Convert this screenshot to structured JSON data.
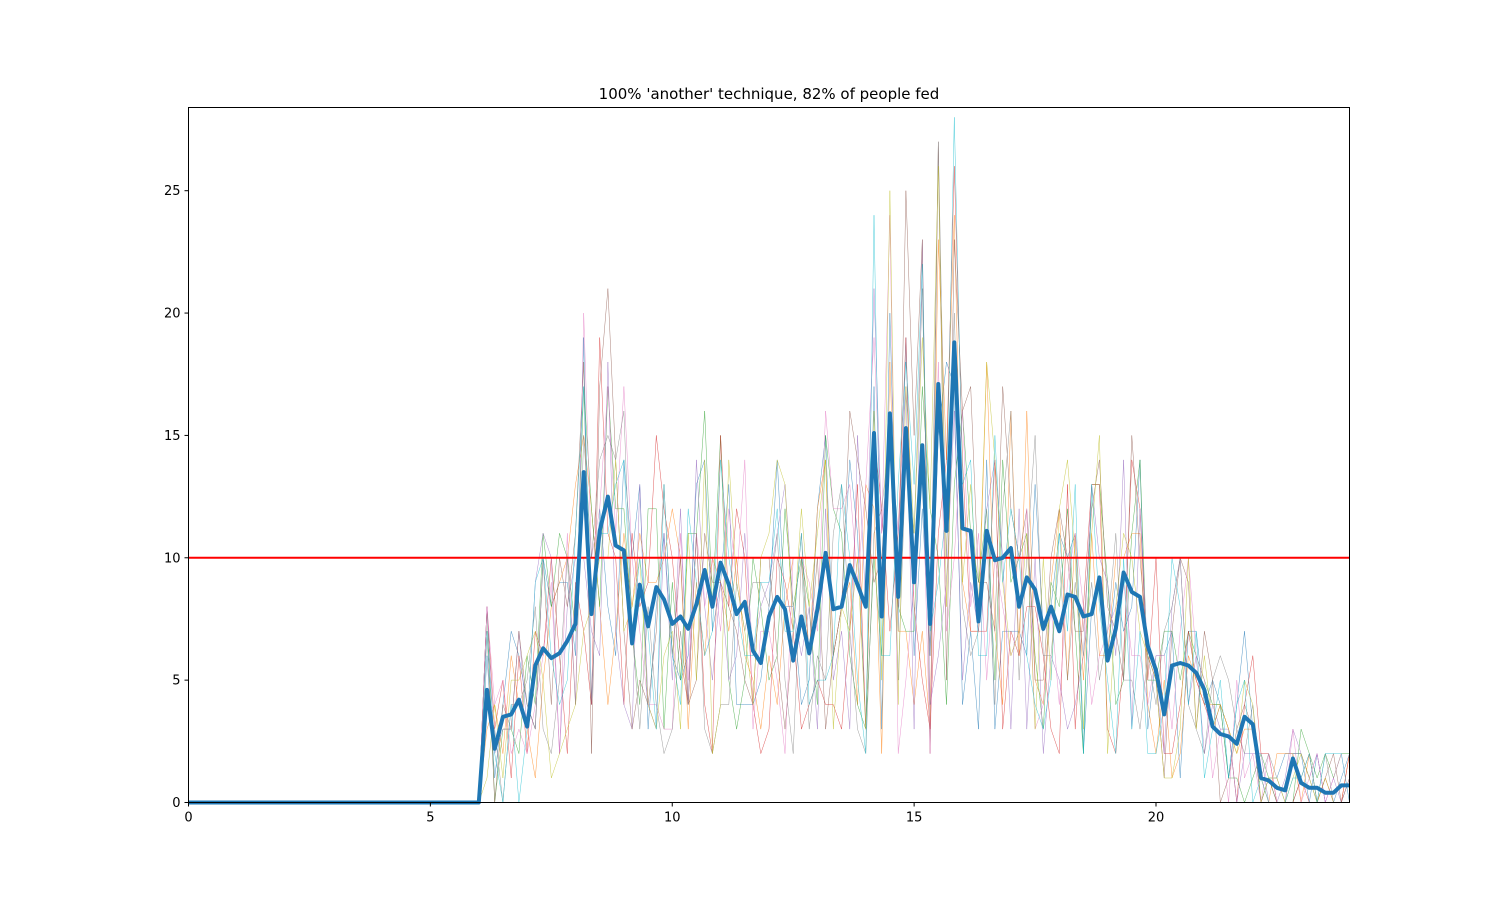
{
  "chart_data": {
    "type": "line",
    "title": "100% 'another' technique, 82% of people fed",
    "xlabel": "",
    "ylabel": "",
    "xlim": [
      0,
      24
    ],
    "ylim": [
      0,
      28.4
    ],
    "xticks": [
      "0",
      "5",
      "10",
      "15",
      "20"
    ],
    "yticks": [
      "0",
      "5",
      "10",
      "15",
      "20",
      "25"
    ],
    "grid": false,
    "legend": "none",
    "threshold": {
      "y": 10,
      "color": "#ff0000"
    },
    "mean_series": {
      "color": "#1f77b4",
      "x": [
        0,
        1,
        2,
        3,
        4,
        5,
        5.5,
        5.83,
        6.0,
        6.17,
        6.33,
        6.5,
        6.67,
        6.83,
        7.0,
        7.17,
        7.33,
        7.5,
        7.67,
        7.83,
        8.0,
        8.17,
        8.33,
        8.5,
        8.67,
        8.83,
        9.0,
        9.17,
        9.33,
        9.5,
        9.67,
        9.83,
        10.0,
        10.17,
        10.33,
        10.5,
        10.67,
        10.83,
        11.0,
        11.17,
        11.33,
        11.5,
        11.67,
        11.83,
        12.0,
        12.17,
        12.33,
        12.5,
        12.67,
        12.83,
        13.0,
        13.17,
        13.33,
        13.5,
        13.67,
        13.83,
        14.0,
        14.17,
        14.33,
        14.5,
        14.67,
        14.83,
        15.0,
        15.17,
        15.33,
        15.5,
        15.67,
        15.83,
        16.0,
        16.17,
        16.33,
        16.5,
        16.67,
        16.83,
        17.0,
        17.17,
        17.33,
        17.5,
        17.67,
        17.83,
        18.0,
        18.17,
        18.33,
        18.5,
        18.67,
        18.83,
        19.0,
        19.17,
        19.33,
        19.5,
        19.67,
        19.83,
        20.0,
        20.17,
        20.33,
        20.5,
        20.67,
        20.83,
        21.0,
        21.17,
        21.33,
        21.5,
        21.67,
        21.83,
        22.0,
        22.17,
        22.33,
        22.5,
        22.67,
        22.83,
        23.0,
        23.17,
        23.33,
        23.5,
        23.67,
        23.83,
        24.0
      ],
      "y": [
        0,
        0,
        0,
        0,
        0,
        0,
        0,
        0,
        0,
        4.6,
        2.2,
        3.5,
        3.6,
        4.2,
        3.1,
        5.6,
        6.3,
        5.9,
        6.1,
        6.6,
        7.3,
        13.5,
        7.7,
        11.1,
        12.5,
        10.5,
        10.3,
        6.5,
        8.9,
        7.2,
        8.8,
        8.3,
        7.3,
        7.6,
        7.1,
        8.1,
        9.5,
        8.0,
        9.8,
        8.9,
        7.7,
        8.2,
        6.2,
        5.7,
        7.6,
        8.4,
        7.9,
        5.8,
        7.6,
        6.1,
        7.9,
        10.2,
        7.9,
        8.0,
        9.7,
        8.9,
        8.0,
        15.1,
        7.6,
        15.9,
        8.4,
        15.3,
        9.0,
        14.6,
        7.3,
        17.1,
        11.1,
        18.8,
        11.2,
        11.1,
        7.4,
        11.1,
        9.9,
        10.0,
        10.4,
        8.0,
        9.2,
        8.7,
        7.1,
        8.0,
        7.0,
        8.5,
        8.4,
        7.6,
        7.7,
        9.2,
        5.8,
        7.1,
        9.4,
        8.6,
        8.4,
        6.4,
        5.4,
        3.6,
        5.6,
        5.7,
        5.6,
        5.3,
        4.6,
        3.1,
        2.8,
        2.7,
        2.4,
        3.5,
        3.2,
        1.0,
        0.9,
        0.6,
        0.5,
        1.8,
        0.8,
        0.6,
        0.6,
        0.4,
        0.4,
        0.7,
        0.7
      ]
    },
    "run_series_colors": [
      "#1f77b4",
      "#ff7f0e",
      "#2ca02c",
      "#d62728",
      "#9467bd",
      "#8c564b",
      "#e377c2",
      "#7f7f7f",
      "#bcbd22",
      "#17becf"
    ]
  }
}
